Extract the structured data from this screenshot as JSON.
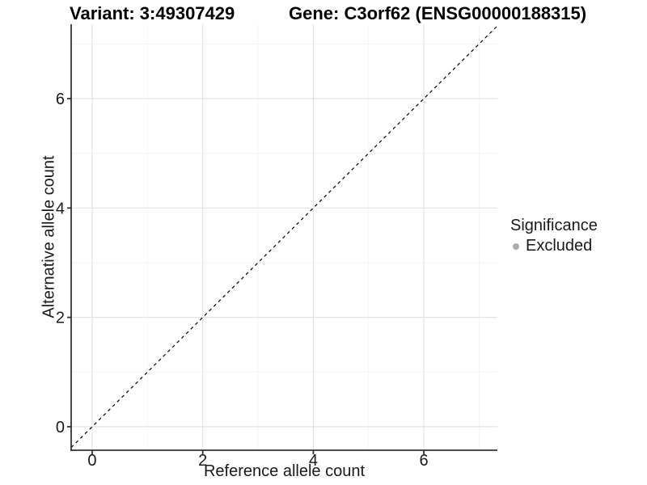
{
  "header": {
    "variant_title": "Variant: 3:49307429",
    "gene_title": "Gene: C3orf62 (ENSG00000188315)"
  },
  "chart_data": {
    "type": "scatter",
    "title": "Variant: 3:49307429    Gene: C3orf62 (ENSG00000188315)",
    "xlabel": "Reference allele count",
    "ylabel": "Alternative allele count",
    "xlim": [
      -0.38,
      7.33
    ],
    "ylim": [
      -0.43,
      7.36
    ],
    "x_major_ticks": [
      0,
      2,
      4,
      6
    ],
    "x_minor_ticks": [
      1,
      3,
      5,
      7
    ],
    "y_major_ticks": [
      0,
      2,
      4,
      6
    ],
    "y_minor_ticks": [
      1,
      3,
      5,
      7
    ],
    "grid": true,
    "points": [],
    "identity_line": {
      "equation": "y = x",
      "style": "dashed",
      "dash": [
        4,
        4
      ],
      "width": 1.2
    },
    "legend": {
      "title": "Significance",
      "position": "right",
      "items": [
        {
          "label": "Excluded",
          "color": "#ababab",
          "shape": "circle"
        }
      ]
    },
    "colors": {
      "background": "#ffffff",
      "axis_line": "#333333",
      "major_grid": "#e3e3e3",
      "minor_grid": "#f1f1f1",
      "identity_line": "#000000",
      "tick_text": "#1a1a1a",
      "legend_point": "#ababab"
    }
  }
}
